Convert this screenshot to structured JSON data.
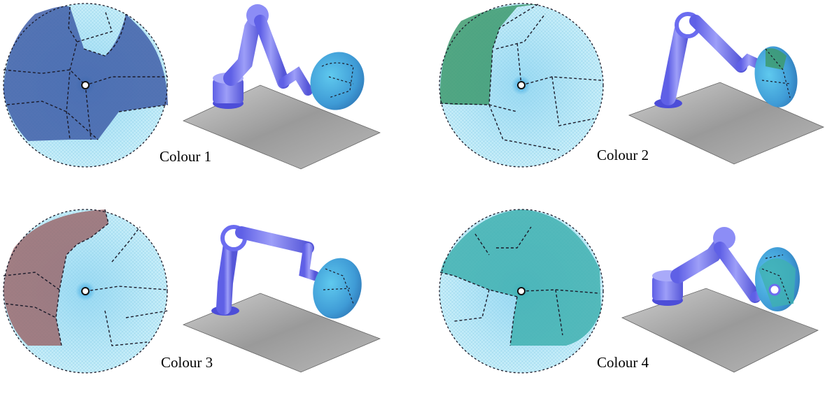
{
  "panels": [
    {
      "label": "Colour 1",
      "highlight_color": "#3f5ea8"
    },
    {
      "label": "Colour 2",
      "highlight_color": "#3d9a6e"
    },
    {
      "label": "Colour 3",
      "highlight_color": "#9a6a6e"
    },
    {
      "label": "Colour 4",
      "highlight_color": "#3fb0b0"
    }
  ],
  "colors": {
    "sphere_base": "#bfe9f7",
    "sphere_mesh": "#7fcbe6",
    "boundary_lines": "#1b1b2a",
    "robot_arm": "#7b7cf2",
    "floor": "#9a9a9a",
    "background": "#ffffff"
  }
}
